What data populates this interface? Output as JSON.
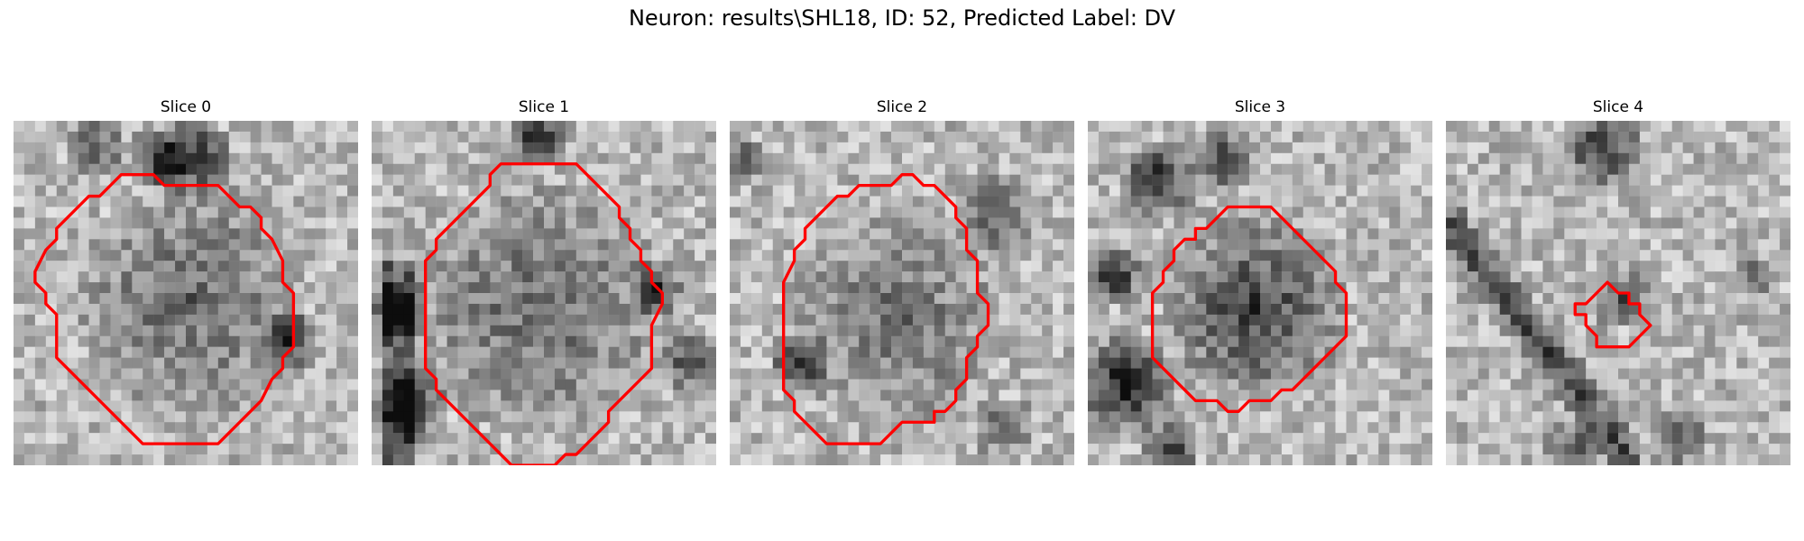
{
  "figure": {
    "title": "Neuron: results\\SHL18, ID: 52, Predicted Label: DV",
    "panels": [
      {
        "title": "Slice 0",
        "contour": [
          [
            14,
            6
          ],
          [
            19,
            6
          ],
          [
            20,
            7
          ],
          [
            21,
            8
          ],
          [
            22,
            8
          ],
          [
            23,
            9
          ],
          [
            23,
            10
          ],
          [
            24,
            11
          ],
          [
            25,
            13
          ],
          [
            25,
            15
          ],
          [
            26,
            16
          ],
          [
            26,
            21
          ],
          [
            25,
            22
          ],
          [
            25,
            23
          ],
          [
            24,
            24
          ],
          [
            23,
            26
          ],
          [
            22,
            27
          ],
          [
            21,
            28
          ],
          [
            20,
            29
          ],
          [
            19,
            30
          ],
          [
            17,
            30
          ],
          [
            12,
            30
          ],
          [
            11,
            29
          ],
          [
            10,
            28
          ],
          [
            9,
            27
          ],
          [
            8,
            26
          ],
          [
            7,
            25
          ],
          [
            6,
            24
          ],
          [
            5,
            23
          ],
          [
            4,
            22
          ],
          [
            4,
            20
          ],
          [
            4,
            18
          ],
          [
            3,
            17
          ],
          [
            3,
            16
          ],
          [
            2,
            15
          ],
          [
            2,
            14
          ],
          [
            3,
            12
          ],
          [
            4,
            11
          ],
          [
            4,
            10
          ],
          [
            5,
            9
          ],
          [
            6,
            8
          ],
          [
            7,
            7
          ],
          [
            8,
            7
          ],
          [
            9,
            6
          ],
          [
            10,
            5
          ],
          [
            11,
            5
          ],
          [
            13,
            5
          ]
        ]
      },
      {
        "title": "Slice 1",
        "contour": [
          [
            12,
            4
          ],
          [
            19,
            4
          ],
          [
            20,
            5
          ],
          [
            21,
            6
          ],
          [
            22,
            7
          ],
          [
            23,
            8
          ],
          [
            23,
            9
          ],
          [
            24,
            10
          ],
          [
            24,
            11
          ],
          [
            25,
            12
          ],
          [
            25,
            13
          ],
          [
            26,
            14
          ],
          [
            26,
            15
          ],
          [
            27,
            16
          ],
          [
            27,
            17
          ],
          [
            26,
            19
          ],
          [
            26,
            20
          ],
          [
            26,
            23
          ],
          [
            25,
            24
          ],
          [
            24,
            25
          ],
          [
            23,
            26
          ],
          [
            22,
            27
          ],
          [
            22,
            28
          ],
          [
            21,
            29
          ],
          [
            20,
            30
          ],
          [
            19,
            31
          ],
          [
            18,
            31
          ],
          [
            17,
            32
          ],
          [
            13,
            32
          ],
          [
            12,
            31
          ],
          [
            11,
            30
          ],
          [
            10,
            29
          ],
          [
            9,
            28
          ],
          [
            8,
            27
          ],
          [
            7,
            26
          ],
          [
            6,
            25
          ],
          [
            6,
            24
          ],
          [
            5,
            23
          ],
          [
            5,
            22
          ],
          [
            5,
            21
          ],
          [
            5,
            20
          ],
          [
            5,
            18
          ],
          [
            5,
            16
          ],
          [
            5,
            15
          ],
          [
            5,
            14
          ],
          [
            5,
            13
          ],
          [
            6,
            12
          ],
          [
            6,
            11
          ],
          [
            7,
            10
          ],
          [
            8,
            9
          ],
          [
            9,
            8
          ],
          [
            10,
            7
          ],
          [
            11,
            6
          ],
          [
            11,
            5
          ],
          [
            12,
            4
          ]
        ]
      },
      {
        "title": "Slice 2",
        "contour": [
          [
            15,
            6
          ],
          [
            16,
            5
          ],
          [
            17,
            5
          ],
          [
            18,
            6
          ],
          [
            19,
            6
          ],
          [
            20,
            7
          ],
          [
            21,
            8
          ],
          [
            21,
            9
          ],
          [
            22,
            10
          ],
          [
            22,
            12
          ],
          [
            23,
            13
          ],
          [
            23,
            14
          ],
          [
            23,
            16
          ],
          [
            24,
            17
          ],
          [
            24,
            19
          ],
          [
            23,
            20
          ],
          [
            23,
            21
          ],
          [
            22,
            22
          ],
          [
            22,
            24
          ],
          [
            21,
            25
          ],
          [
            21,
            26
          ],
          [
            20,
            27
          ],
          [
            19,
            27
          ],
          [
            19,
            28
          ],
          [
            17,
            28
          ],
          [
            16,
            28
          ],
          [
            15,
            29
          ],
          [
            14,
            30
          ],
          [
            10,
            30
          ],
          [
            9,
            30
          ],
          [
            8,
            29
          ],
          [
            7,
            28
          ],
          [
            6,
            27
          ],
          [
            6,
            26
          ],
          [
            5,
            25
          ],
          [
            5,
            23
          ],
          [
            5,
            21
          ],
          [
            5,
            17
          ],
          [
            5,
            15
          ],
          [
            6,
            13
          ],
          [
            6,
            12
          ],
          [
            7,
            11
          ],
          [
            7,
            10
          ],
          [
            8,
            9
          ],
          [
            9,
            8
          ],
          [
            10,
            7
          ],
          [
            11,
            7
          ],
          [
            12,
            6
          ],
          [
            13,
            6
          ],
          [
            14,
            6
          ]
        ]
      },
      {
        "title": "Slice 3",
        "contour": [
          [
            12,
            9
          ],
          [
            13,
            8
          ],
          [
            17,
            8
          ],
          [
            18,
            9
          ],
          [
            19,
            10
          ],
          [
            20,
            11
          ],
          [
            21,
            12
          ],
          [
            22,
            13
          ],
          [
            23,
            14
          ],
          [
            23,
            15
          ],
          [
            24,
            16
          ],
          [
            24,
            19
          ],
          [
            24,
            20
          ],
          [
            23,
            21
          ],
          [
            22,
            22
          ],
          [
            21,
            23
          ],
          [
            20,
            24
          ],
          [
            19,
            25
          ],
          [
            18,
            25
          ],
          [
            17,
            26
          ],
          [
            16,
            26
          ],
          [
            15,
            26
          ],
          [
            14,
            27
          ],
          [
            13,
            27
          ],
          [
            12,
            26
          ],
          [
            11,
            26
          ],
          [
            10,
            26
          ],
          [
            9,
            25
          ],
          [
            8,
            24
          ],
          [
            7,
            23
          ],
          [
            6,
            22
          ],
          [
            6,
            21
          ],
          [
            6,
            20
          ],
          [
            6,
            16
          ],
          [
            7,
            15
          ],
          [
            7,
            14
          ],
          [
            8,
            13
          ],
          [
            8,
            12
          ],
          [
            9,
            11
          ],
          [
            10,
            11
          ],
          [
            10,
            10
          ],
          [
            11,
            10
          ],
          [
            12,
            9
          ]
        ]
      },
      {
        "title": "Slice 4",
        "contour": [
          [
            15,
            15
          ],
          [
            16,
            16
          ],
          [
            17,
            16
          ],
          [
            17,
            17
          ],
          [
            18,
            17
          ],
          [
            18,
            18
          ],
          [
            19,
            19
          ],
          [
            18,
            20
          ],
          [
            17,
            21
          ],
          [
            16,
            21
          ],
          [
            15,
            21
          ],
          [
            14,
            21
          ],
          [
            14,
            20
          ],
          [
            13,
            19
          ],
          [
            13,
            18
          ],
          [
            12,
            18
          ],
          [
            12,
            17
          ],
          [
            13,
            17
          ],
          [
            14,
            16
          ],
          [
            15,
            15
          ]
        ]
      }
    ]
  }
}
